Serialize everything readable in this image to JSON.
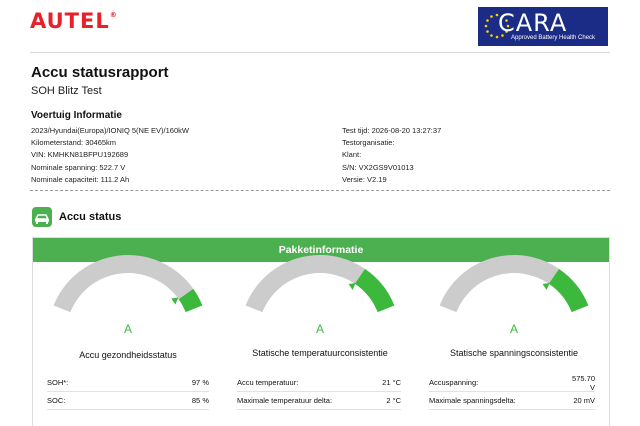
{
  "header": {
    "brand": "AUTEL",
    "brand_mark": "®",
    "badge_title": "CARA",
    "badge_subtitle": "Approved Battery Health Check"
  },
  "report": {
    "title": "Accu statusrapport",
    "subtitle": "SOH Blitz Test"
  },
  "vehicle_info": {
    "heading": "Voertuig Informatie",
    "left": [
      "2023/Hyundai(Europa)/IONIQ 5(NE EV)/160kW",
      "Kilometerstand: 30465km",
      "VIN: KMHKN81BFPU192689",
      "Nominale spanning: 522.7 V",
      "Nominale capaciteit: 111.2 Ah"
    ],
    "right": [
      "Test tijd: 2026-08-20 13:27:37",
      "Testorganisatie:",
      "Klant:",
      "S/N: VX2GS9V01013",
      "Versie: V2.19"
    ]
  },
  "accu_status": {
    "title": "Accu status",
    "panel_title": "Pakketinformatie"
  },
  "gauges": [
    {
      "grade": "A",
      "name": "Accu gezondheidsstatus",
      "level": 0.9,
      "rows": [
        {
          "label": "SOH*:",
          "value": "97 %"
        },
        {
          "label": "SOC:",
          "value": "85 %"
        }
      ]
    },
    {
      "grade": "A",
      "name": "Statische temperatuurconsistentie",
      "level": 0.75,
      "rows": [
        {
          "label": "Accu temperatuur:",
          "value": "21 °C"
        },
        {
          "label": "Maximale temperatuur delta:",
          "value": "2 °C"
        }
      ]
    },
    {
      "grade": "A",
      "name": "Statische spanningsconsistentie",
      "level": 0.75,
      "rows": [
        {
          "label": "Accuspanning:",
          "value": "575.70\nV"
        },
        {
          "label": "Maximale spanningsdelta:",
          "value": "20 mV"
        }
      ]
    }
  ],
  "colors": {
    "brand": "#e8202a",
    "accent_green": "#4caf50",
    "gauge_green": "#3cb93c",
    "gauge_gray": "#cccccc",
    "badge_blue": "#1a2c86"
  },
  "icons": {
    "accu_status": "battery-car-icon",
    "badge": "eu-stars-icon"
  }
}
